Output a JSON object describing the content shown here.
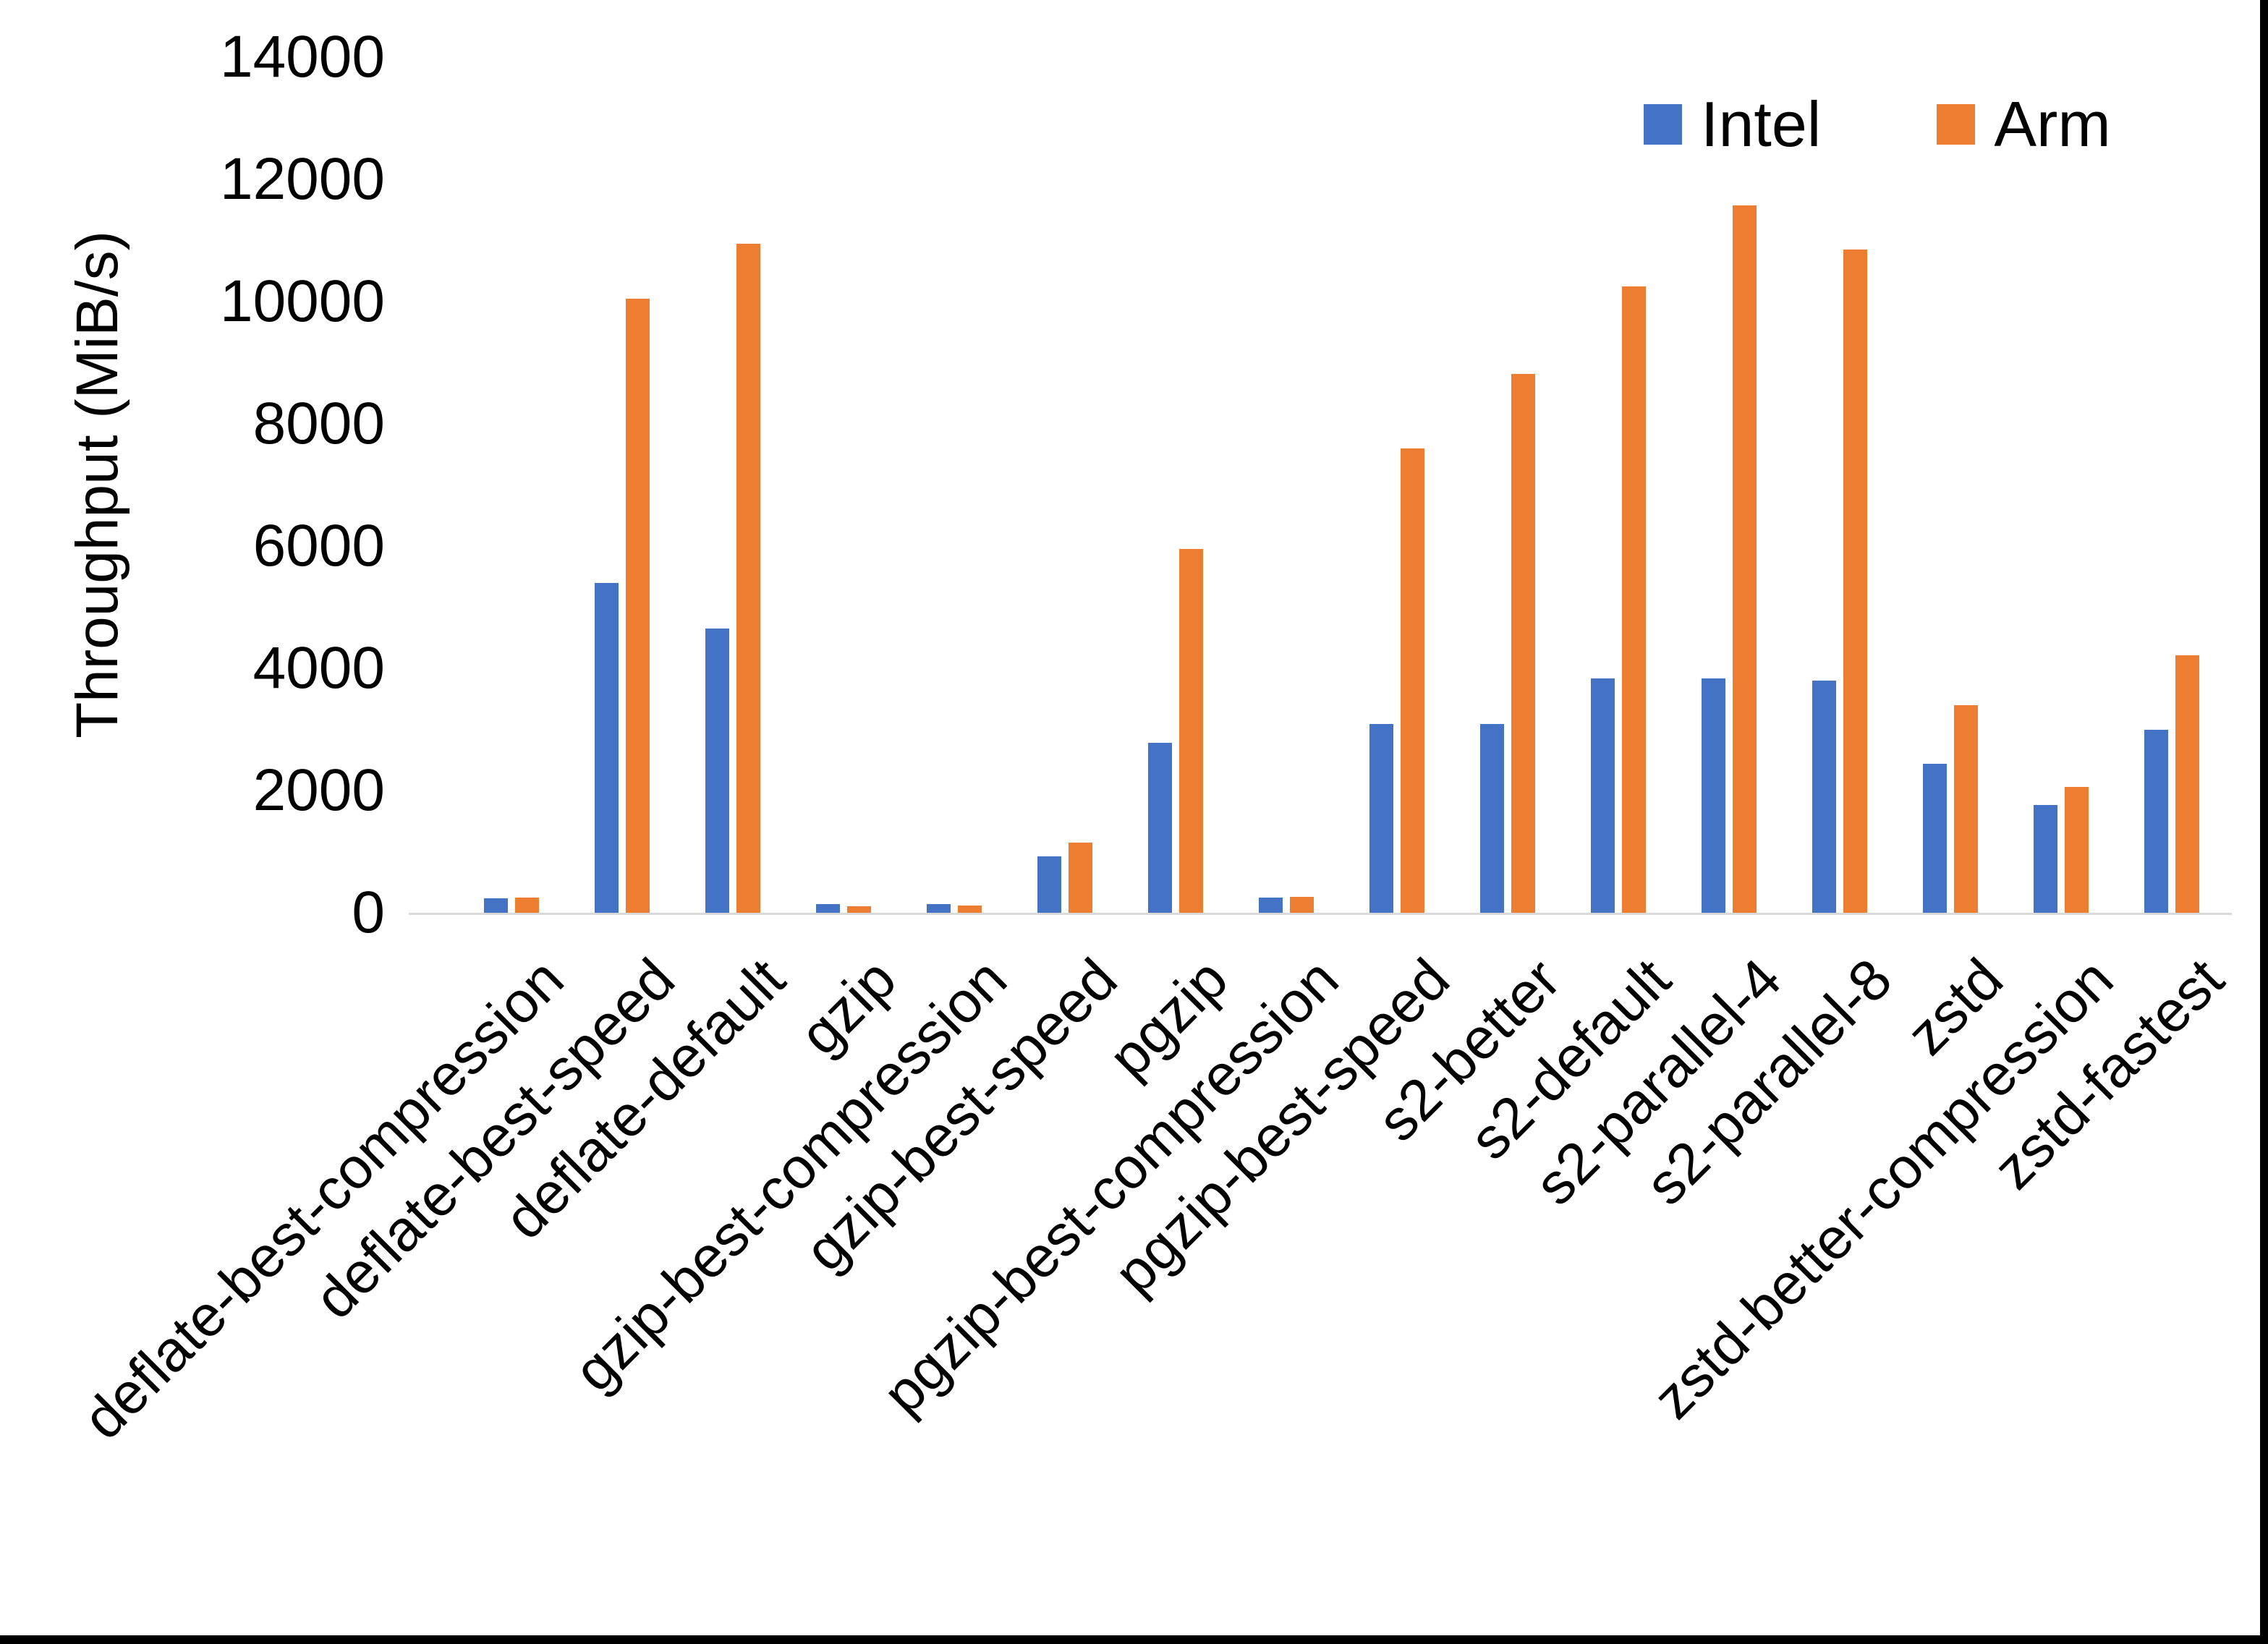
{
  "chart_data": {
    "type": "bar",
    "title": "",
    "xlabel": "",
    "ylabel": "Throughput (MiB/s)",
    "ylim": [
      0,
      14000
    ],
    "y_ticks": [
      0,
      2000,
      4000,
      6000,
      8000,
      10000,
      12000,
      14000
    ],
    "grid": false,
    "legend_position": "top-right",
    "categories": [
      "deflate-best-compression",
      "deflate-best-speed",
      "deflate-default",
      "gzip",
      "gzip-best-compression",
      "gzip-best-speed",
      "pgzip",
      "pgzip-best-compression",
      "pgzip-best-speed",
      "s2-better",
      "s2-default",
      "s2-parallel-4",
      "s2-parallel-8",
      "zstd",
      "zstd-better-compression",
      "zstd-fastest"
    ],
    "series": [
      {
        "name": "Intel",
        "color": "#4472C4",
        "values": [
          240,
          5400,
          4650,
          140,
          140,
          920,
          2780,
          245,
          3090,
          3090,
          3830,
          3830,
          3800,
          2440,
          1760,
          2990
        ]
      },
      {
        "name": "Arm",
        "color": "#ED7D31",
        "values": [
          245,
          10050,
          10950,
          110,
          120,
          1150,
          5950,
          260,
          7600,
          8820,
          10250,
          11570,
          10850,
          3400,
          2060,
          4210
        ]
      }
    ]
  },
  "y_axis": {
    "title": "Throughput (MiB/s)",
    "max": 14000
  },
  "colors": {
    "intel": "#4472C4",
    "arm": "#ED7D31",
    "axis_line": "#D9D9D9",
    "frame_border": "#000000"
  }
}
